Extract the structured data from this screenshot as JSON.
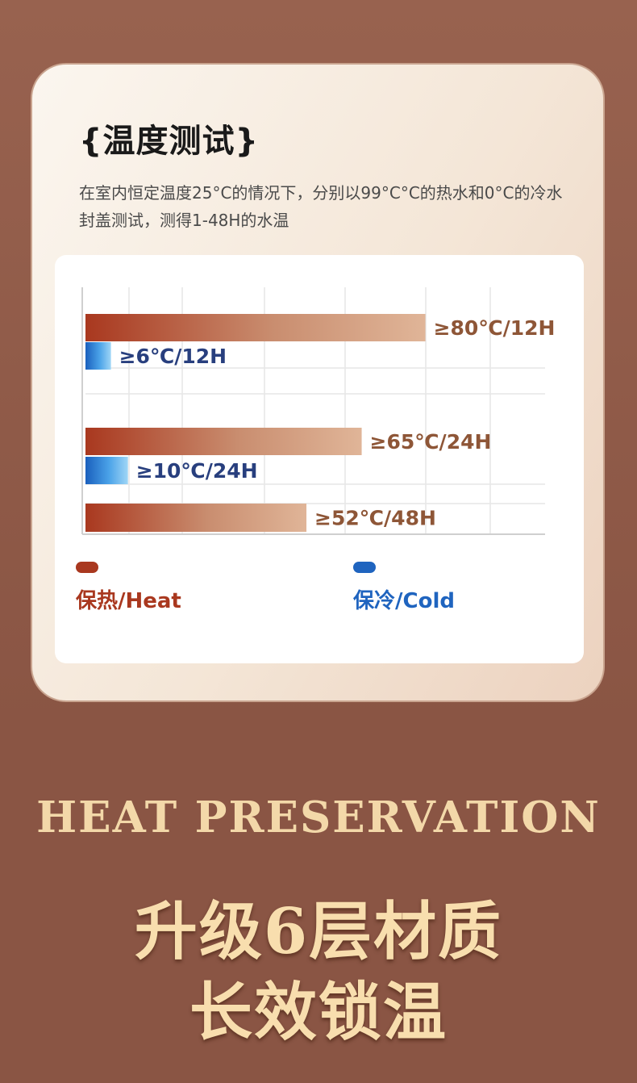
{
  "card": {
    "title": "{温度测试}",
    "description": "在室内恒定温度25°C的情况下，分别以99°C°C的热水和0°C的冷水封盖测试，测得1-48H的水温"
  },
  "chart_data": {
    "type": "bar",
    "orientation": "horizontal",
    "x_unit": "°C",
    "bars": [
      {
        "series": "heat",
        "label": "≥80℃/12H",
        "hours": 12,
        "value": 80
      },
      {
        "series": "cold",
        "label": "≥6℃/12H",
        "hours": 12,
        "value": 6
      },
      {
        "series": "heat",
        "label": "≥65℃/24H",
        "hours": 24,
        "value": 65
      },
      {
        "series": "cold",
        "label": "≥10℃/24H",
        "hours": 24,
        "value": 10
      },
      {
        "series": "heat",
        "label": "≥52℃/48H",
        "hours": 48,
        "value": 52
      }
    ],
    "xlim": [
      0,
      100
    ],
    "grid": true,
    "legend_placement": "bottom",
    "series": [
      {
        "key": "heat",
        "name": "保热/Heat",
        "color": "#a9381f"
      },
      {
        "key": "cold",
        "name": "保冷/Cold",
        "color": "#1f64bf"
      }
    ]
  },
  "legend": {
    "heat": {
      "label": "保热/Heat",
      "color": "#a9381f"
    },
    "cold": {
      "label": "保冷/Cold",
      "color": "#1f64bf"
    }
  },
  "headings": {
    "english": "HEAT PRESERVATION",
    "line1": "升级6层材质",
    "line2": "长效锁温"
  },
  "colors": {
    "background": "#8a5544",
    "gold_text": "#f3d8a9",
    "heat_label": "#8e5637",
    "cold_label": "#283f7e"
  }
}
